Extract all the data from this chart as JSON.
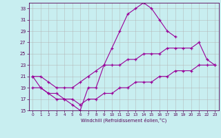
{
  "xlabel": "Windchill (Refroidissement éolien,°C)",
  "background_color": "#c8eef0",
  "grid_color": "#b0b0b0",
  "line_color": "#990099",
  "xlim": [
    -0.5,
    23.5
  ],
  "ylim": [
    15,
    34
  ],
  "xticks": [
    0,
    1,
    2,
    3,
    4,
    5,
    6,
    7,
    8,
    9,
    10,
    11,
    12,
    13,
    14,
    15,
    16,
    17,
    18,
    19,
    20,
    21,
    22,
    23
  ],
  "yticks": [
    15,
    17,
    19,
    21,
    23,
    25,
    27,
    29,
    31,
    33
  ],
  "line1_x": [
    0,
    1,
    2,
    3,
    4,
    5,
    6,
    7,
    8,
    9,
    10,
    11,
    12,
    13,
    14,
    15,
    16,
    17,
    18
  ],
  "line1_y": [
    21,
    19,
    18,
    17,
    17,
    16,
    15,
    19,
    19,
    23,
    26,
    29,
    32,
    33,
    34,
    33,
    31,
    29,
    28
  ],
  "line2_x": [
    0,
    1,
    2,
    3,
    4,
    5,
    6,
    7,
    8,
    9,
    10,
    11,
    12,
    13,
    14,
    15,
    16,
    17,
    18,
    19,
    20,
    21,
    22,
    23
  ],
  "line2_y": [
    21,
    21,
    20,
    19,
    19,
    19,
    20,
    21,
    22,
    23,
    23,
    23,
    24,
    24,
    25,
    25,
    25,
    26,
    26,
    26,
    26,
    27,
    24,
    23
  ],
  "line3_x": [
    0,
    1,
    2,
    3,
    4,
    5,
    6,
    7,
    8,
    9,
    10,
    11,
    12,
    13,
    14,
    15,
    16,
    17,
    18,
    19,
    20,
    21,
    22,
    23
  ],
  "line3_y": [
    19,
    19,
    18,
    18,
    17,
    17,
    16,
    17,
    17,
    18,
    18,
    19,
    19,
    20,
    20,
    20,
    21,
    21,
    22,
    22,
    22,
    23,
    23,
    23
  ]
}
